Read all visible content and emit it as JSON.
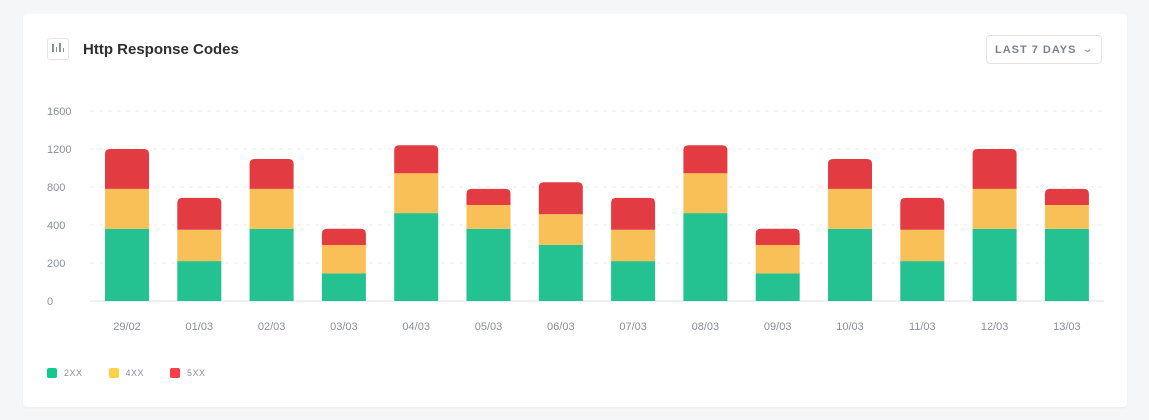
{
  "header": {
    "title": "Http Response Codes",
    "icon": "bar-chart-icon",
    "range_label": "LAST 7 DAYS",
    "range_icon": "chevron-down-icon"
  },
  "chart_data": {
    "type": "bar",
    "stacked": true,
    "title": "Http Response Codes",
    "categories": [
      "29/02",
      "01/03",
      "02/03",
      "03/03",
      "04/03",
      "05/03",
      "06/03",
      "07/03",
      "08/03",
      "09/03",
      "10/03",
      "11/03",
      "12/03",
      "13/03"
    ],
    "yticks": [
      0,
      200,
      400,
      800,
      1200,
      1600
    ],
    "ylim": [
      0,
      1600
    ],
    "grid": true,
    "legend_position": "bottom-left",
    "series": [
      {
        "name": "2XX",
        "color": "#23c290",
        "values": [
          380,
          210,
          380,
          145,
          525,
          380,
          295,
          210,
          525,
          145,
          380,
          210,
          380,
          380
        ]
      },
      {
        "name": "4XX",
        "color": "#f9c058",
        "values": [
          400,
          165,
          400,
          150,
          420,
          230,
          220,
          165,
          420,
          150,
          400,
          165,
          400,
          230
        ]
      },
      {
        "name": "5XX",
        "color": "#e33b42",
        "values": [
          420,
          310,
          315,
          85,
          295,
          170,
          335,
          310,
          295,
          85,
          315,
          310,
          420,
          170
        ]
      }
    ],
    "legend_colors": [
      "#12ca8a",
      "#fdd047",
      "#fb3f4a"
    ]
  }
}
